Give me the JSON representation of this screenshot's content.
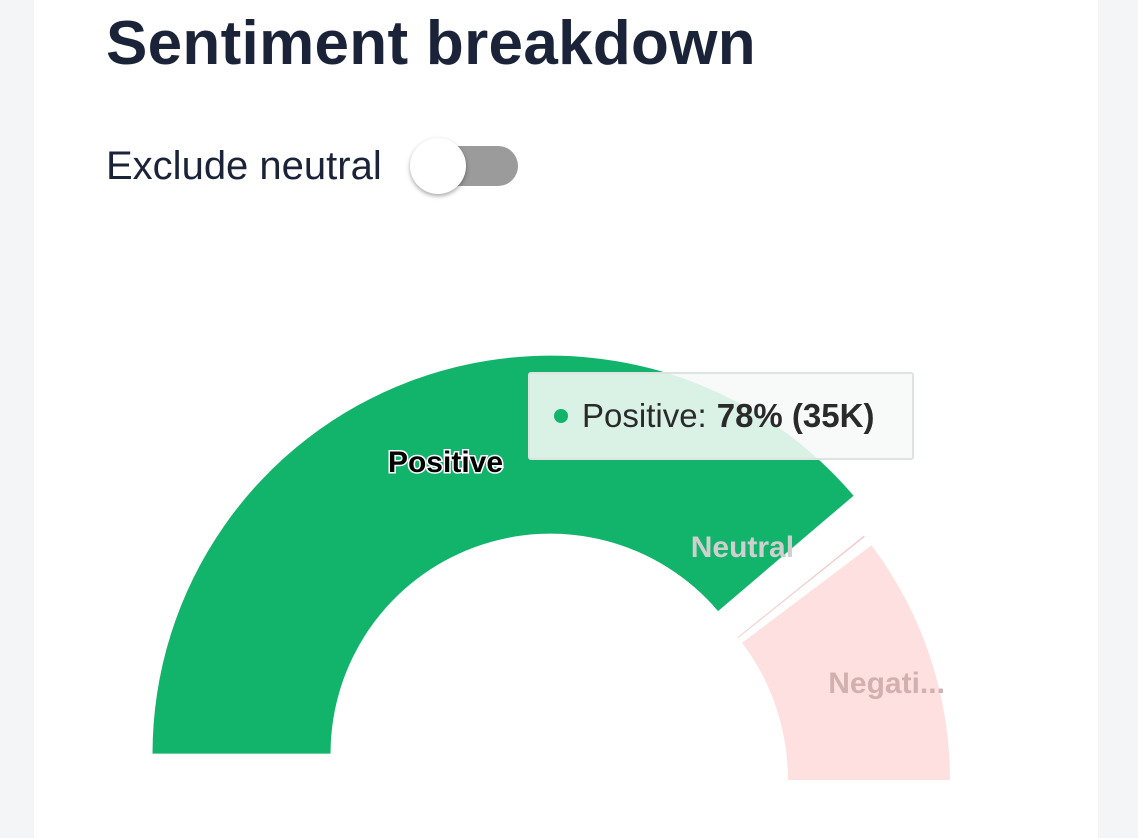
{
  "title": "Sentiment breakdown",
  "toggle": {
    "label": "Exclude neutral",
    "checked": false
  },
  "colors": {
    "positive": "#12b36b",
    "neutral": "#f2c6c6",
    "negative": "#ffe0e0"
  },
  "tooltip": {
    "series": "Positive",
    "label": "Positive:",
    "value": "78% (35K)"
  },
  "chart_data": {
    "type": "pie",
    "variant": "half-donut",
    "categories": [
      "Positive",
      "Neutral",
      "Negative"
    ],
    "slice_labels": [
      "Positive",
      "Neutral",
      "Negati..."
    ],
    "values": [
      78,
      1,
      21
    ],
    "unit": "%",
    "highlighted": "Positive"
  }
}
